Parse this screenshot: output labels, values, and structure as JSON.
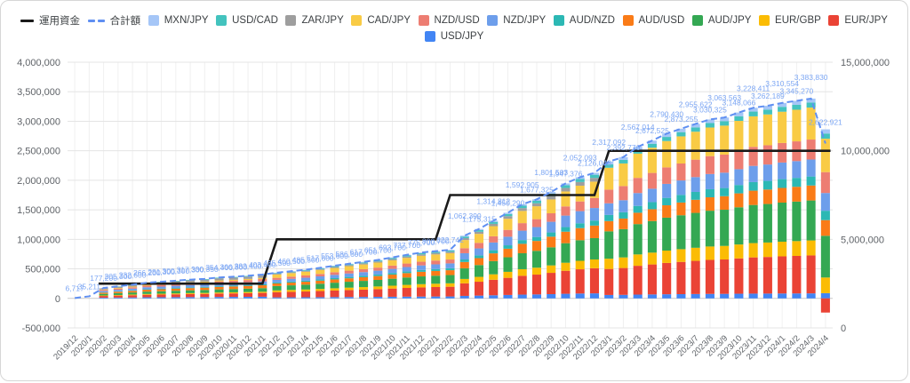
{
  "legend": {
    "line_items": [
      {
        "name": "operating-funds",
        "label": "運用資金",
        "style": "solid-line",
        "color": "#1a1a1a"
      },
      {
        "name": "total-amount",
        "label": "合計額",
        "style": "dashed-line",
        "color": "#5f8ff2"
      }
    ],
    "series_items_row1": [
      "MXN/JPY",
      "USD/CAD",
      "ZAR/JPY",
      "CAD/JPY",
      "NZD/USD",
      "NZD/JPY",
      "AUD/NZD",
      "AUD/USD",
      "AUD/JPY",
      "EUR/GBP",
      "EUR/JPY"
    ],
    "series_items_row2": [
      "USD/JPY"
    ]
  },
  "chart_data": {
    "type": "bar",
    "subtype": "stacked-bars-with-step-line-and-dashed-total-line",
    "categories": [
      "2019/12",
      "2020/1",
      "2020/2",
      "2020/3",
      "2020/4",
      "2020/5",
      "2020/6",
      "2020/7",
      "2020/8",
      "2020/9",
      "2020/10",
      "2020/11",
      "2020/12",
      "2021/1",
      "2021/2",
      "2021/3",
      "2021/4",
      "2021/5",
      "2021/6",
      "2021/7",
      "2021/8",
      "2021/9",
      "2021/10",
      "2021/11",
      "2021/12",
      "2022/1",
      "2022/2",
      "2022/3",
      "2022/4",
      "2022/5",
      "2022/6",
      "2022/7",
      "2022/8",
      "2022/9",
      "2022/10",
      "2022/11",
      "2022/12",
      "2023/1",
      "2023/2",
      "2023/3",
      "2023/4",
      "2023/5",
      "2023/6",
      "2023/7",
      "2023/8",
      "2023/9",
      "2023/10",
      "2023/11",
      "2023/12",
      "2024/1",
      "2024/2",
      "2024/3",
      "2024/4"
    ],
    "totals": [
      6717,
      35211,
      177200,
      205300,
      232600,
      266200,
      281300,
      300300,
      317300,
      330350,
      354400,
      366800,
      383400,
      403400,
      435500,
      460500,
      485500,
      517600,
      553600,
      586600,
      617700,
      651700,
      693700,
      737700,
      775700,
      800700,
      822742,
      1062390,
      1175315,
      1314812,
      1450290,
      1592905,
      1677325,
      1801503,
      1947376,
      2052093,
      2126048,
      2317092,
      2392776,
      2567014,
      2672525,
      2790430,
      2873255,
      2955622,
      3030325,
      3063563,
      3148066,
      3228411,
      3262189,
      3310554,
      3345270,
      3383830,
      2622921
    ],
    "total_line_label": "合計額",
    "funds_line_label": "運用資金",
    "funds_line_axis": "right",
    "funds_line_steps": [
      {
        "from": 2,
        "to": 13,
        "value": 2500000
      },
      {
        "from": 14,
        "to": 25,
        "value": 5000000
      },
      {
        "from": 26,
        "to": 36,
        "value": 7500000
      },
      {
        "from": 37,
        "to": 52,
        "value": 10000000
      }
    ],
    "series": [
      {
        "name": "USD/JPY",
        "color": "#4285f4",
        "fractions": {
          "a": 0.07,
          "b": 0.04,
          "c": 0.025
        }
      },
      {
        "name": "EUR/JPY",
        "color": "#ea4335",
        "fractions": {
          "a": 0.16,
          "b": 0.2,
          "c": 0.19
        }
      },
      {
        "name": "EUR/GBP",
        "color": "#fbbc04",
        "fractions": {
          "a": 0.05,
          "b": 0.07,
          "c": 0.075
        }
      },
      {
        "name": "AUD/JPY",
        "color": "#34a853",
        "fractions": {
          "a": 0.15,
          "b": 0.17,
          "c": 0.2
        }
      },
      {
        "name": "AUD/USD",
        "color": "#fa7b17",
        "fractions": {
          "a": 0.12,
          "b": 0.1,
          "c": 0.075
        }
      },
      {
        "name": "AUD/NZD",
        "color": "#2cb8b4",
        "fractions": {
          "a": 0.04,
          "b": 0.04,
          "c": 0.045
        }
      },
      {
        "name": "NZD/JPY",
        "color": "#6d9eeb",
        "fractions": {
          "a": 0.12,
          "b": 0.1,
          "c": 0.085
        }
      },
      {
        "name": "NZD/USD",
        "color": "#ed7d72",
        "fractions": {
          "a": 0.1,
          "b": 0.08,
          "c": 0.1
        }
      },
      {
        "name": "CAD/JPY",
        "color": "#f9cb45",
        "fractions": {
          "a": 0.05,
          "b": 0.13,
          "c": 0.16
        }
      },
      {
        "name": "ZAR/JPY",
        "color": "#9e9e9e",
        "fractions": {
          "a": 0.1,
          "b": 0.03,
          "c": 0.0
        }
      },
      {
        "name": "USD/CAD",
        "color": "#43c3be",
        "fractions": {
          "a": 0.03,
          "b": 0.025,
          "c": 0.025
        }
      },
      {
        "name": "MXN/JPY",
        "color": "#a5c6f7",
        "fractions": {
          "a": 0.01,
          "b": 0.015,
          "c": 0.02
        }
      }
    ],
    "eras": [
      {
        "from": 0,
        "to": 13,
        "key": "a"
      },
      {
        "from": 14,
        "to": 36,
        "key": "b"
      },
      {
        "from": 37,
        "to": 52,
        "key": "c"
      }
    ],
    "overrides": {
      "52": {
        "EUR/JPY": -240000
      }
    },
    "axes": {
      "left": {
        "min": -500000,
        "max": 4000000,
        "tick_step": 500000,
        "ticks": [
          "4,000,000",
          "3,500,000",
          "3,000,000",
          "2,500,000",
          "2,000,000",
          "1,500,000",
          "1,000,000",
          "500,000",
          "0",
          "-500,000"
        ]
      },
      "right": {
        "min": 0,
        "max": 15000000,
        "tick_values": [
          15000000,
          10000000,
          5000000,
          0
        ],
        "ticks": [
          "15,000,000",
          "10,000,000",
          "5,000,000",
          "0"
        ]
      }
    },
    "annotation_color": "#7da7f4",
    "highlight_labels": [
      "6,717",
      "35,211",
      "822,742",
      "1,062,390",
      "1,175,315",
      "1,314,812",
      "1,450,290",
      "1,677,325",
      "1,801,503",
      "1,947,376",
      "2,126,048",
      "2,392,776",
      "2,567,014",
      "2,672,525",
      "2,790,430",
      "2,873,255",
      "3,383,830",
      "2,622,921"
    ],
    "grid": true,
    "legend_position": "top"
  }
}
